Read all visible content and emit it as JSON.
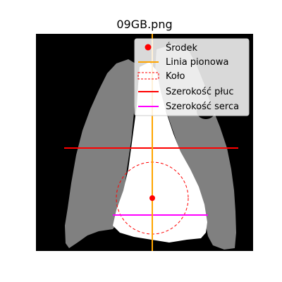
{
  "figure": {
    "title": "09GB.png"
  },
  "legend": {
    "items": [
      {
        "id": "center",
        "label": "Środek",
        "color": "#ff0000",
        "marker": "dot"
      },
      {
        "id": "vline",
        "label": "Linia pionowa",
        "color": "#ffa500",
        "marker": "line"
      },
      {
        "id": "circle",
        "label": "Koło",
        "color": "#ff0000",
        "marker": "dashed-rect"
      },
      {
        "id": "lung",
        "label": "Szerokość płuc",
        "color": "#ff0000",
        "marker": "line"
      },
      {
        "id": "heart",
        "label": "Szerokość serca",
        "color": "#ff00ff",
        "marker": "line"
      }
    ]
  },
  "colors": {
    "background": "#000000",
    "lungs": "#808080",
    "heart": "#ffffff"
  }
}
